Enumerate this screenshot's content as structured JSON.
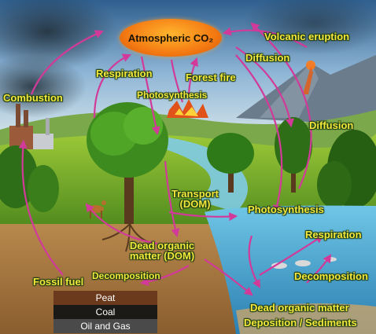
{
  "atmosphere": {
    "label": "Atmospheric CO₂"
  },
  "labels": {
    "combustion": "Combustion",
    "respiration_top": "Respiration",
    "forest_fire": "Forest fire",
    "photosynthesis_top": "Photosynthesis",
    "volcanic_eruption": "Volcanic eruption",
    "diffusion_top": "Diffusion",
    "diffusion_right": "Diffusion",
    "transport_line1": "Transport",
    "transport_line2": "(DOM)",
    "photosynthesis_water": "Photosynthesis",
    "respiration_water": "Respiration",
    "dead_organic_line1": "Dead organic",
    "dead_organic_line2": "matter (DOM)",
    "fossil_fuel": "Fossil fuel",
    "decomposition_land": "Decomposition",
    "decomposition_water": "Decomposition",
    "dead_organic_water": "Dead organic matter",
    "deposition": "Deposition / Sediments"
  },
  "fuel_layers": [
    {
      "label": "Peat",
      "color": "#6b3a1c"
    },
    {
      "label": "Coal",
      "color": "#1c1a17"
    },
    {
      "label": "Oil and Gas",
      "color": "#4a4a4a"
    }
  ],
  "colors": {
    "arrow": "#d23a9a",
    "label_text": "#f5e83c",
    "co2_fill": "#f47a12"
  }
}
